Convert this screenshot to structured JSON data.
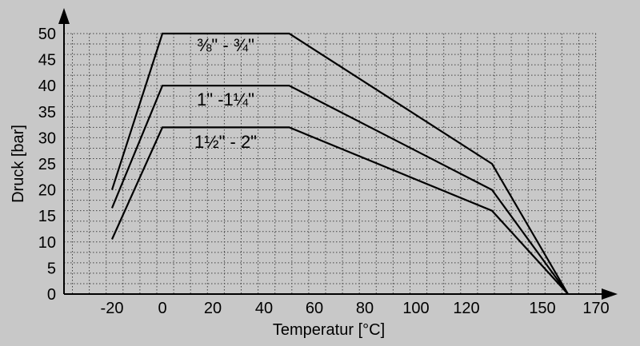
{
  "colors": {
    "background": "#c8c8c8",
    "line": "#000000",
    "grid": "#444444"
  },
  "chart_data": {
    "type": "line",
    "xlabel": "Temperatur [°C]",
    "ylabel": "Druck [bar]",
    "xlim": [
      -30,
      170
    ],
    "ylim": [
      0,
      50
    ],
    "grid": true,
    "x_ticks": [
      -20,
      0,
      20,
      40,
      60,
      80,
      100,
      120,
      150,
      170
    ],
    "y_ticks": [
      0,
      5,
      10,
      15,
      20,
      25,
      30,
      35,
      40,
      45,
      50
    ],
    "series": [
      {
        "name": "⅜\" - ¾\"",
        "x": [
          -20,
          0,
          50,
          130,
          160
        ],
        "y": [
          20,
          50,
          50,
          25,
          0
        ]
      },
      {
        "name": "1\" -1¼\"",
        "x": [
          -20,
          0,
          50,
          130,
          160
        ],
        "y": [
          16.5,
          40,
          40,
          20,
          0
        ]
      },
      {
        "name": "1½\" - 2\"",
        "x": [
          -20,
          0,
          50,
          130,
          160
        ],
        "y": [
          10.5,
          32,
          32,
          16,
          0
        ]
      }
    ]
  }
}
